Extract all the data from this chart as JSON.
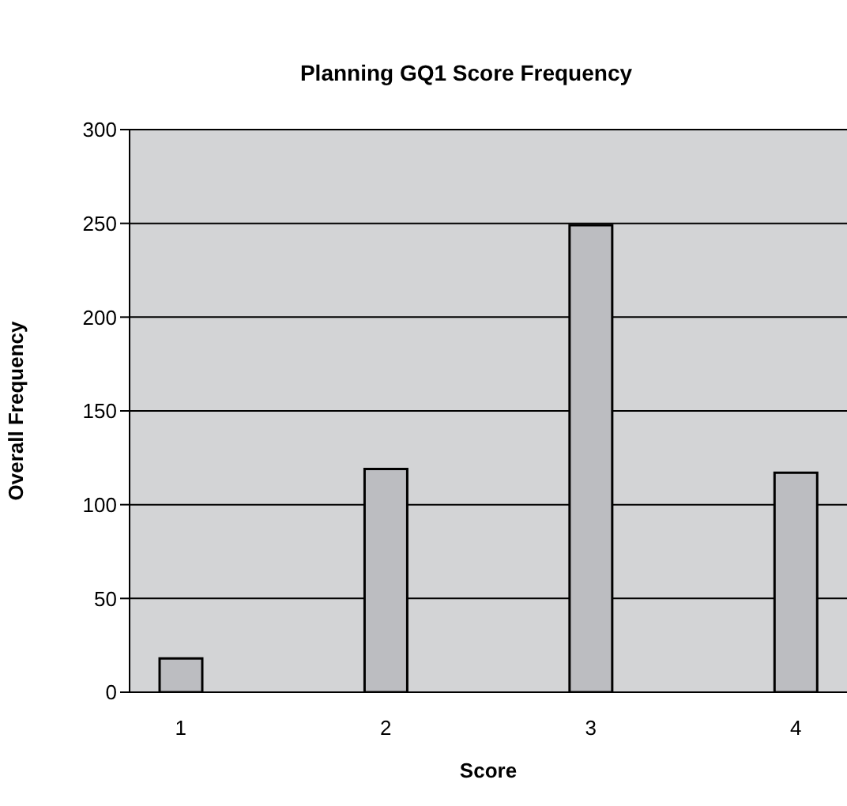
{
  "chart_data": {
    "type": "bar",
    "title": "Planning GQ1 Score Frequency",
    "xlabel": "Score",
    "ylabel": "Overall Frequency",
    "categories": [
      "1",
      null,
      "2",
      null,
      "3",
      null,
      "4"
    ],
    "values": [
      18,
      null,
      119,
      null,
      249,
      null,
      117
    ],
    "color": "#bcbdc1",
    "ylim": [
      0,
      300
    ],
    "yticks": [
      0,
      50,
      100,
      150,
      200,
      250,
      300
    ],
    "grid": "y"
  }
}
